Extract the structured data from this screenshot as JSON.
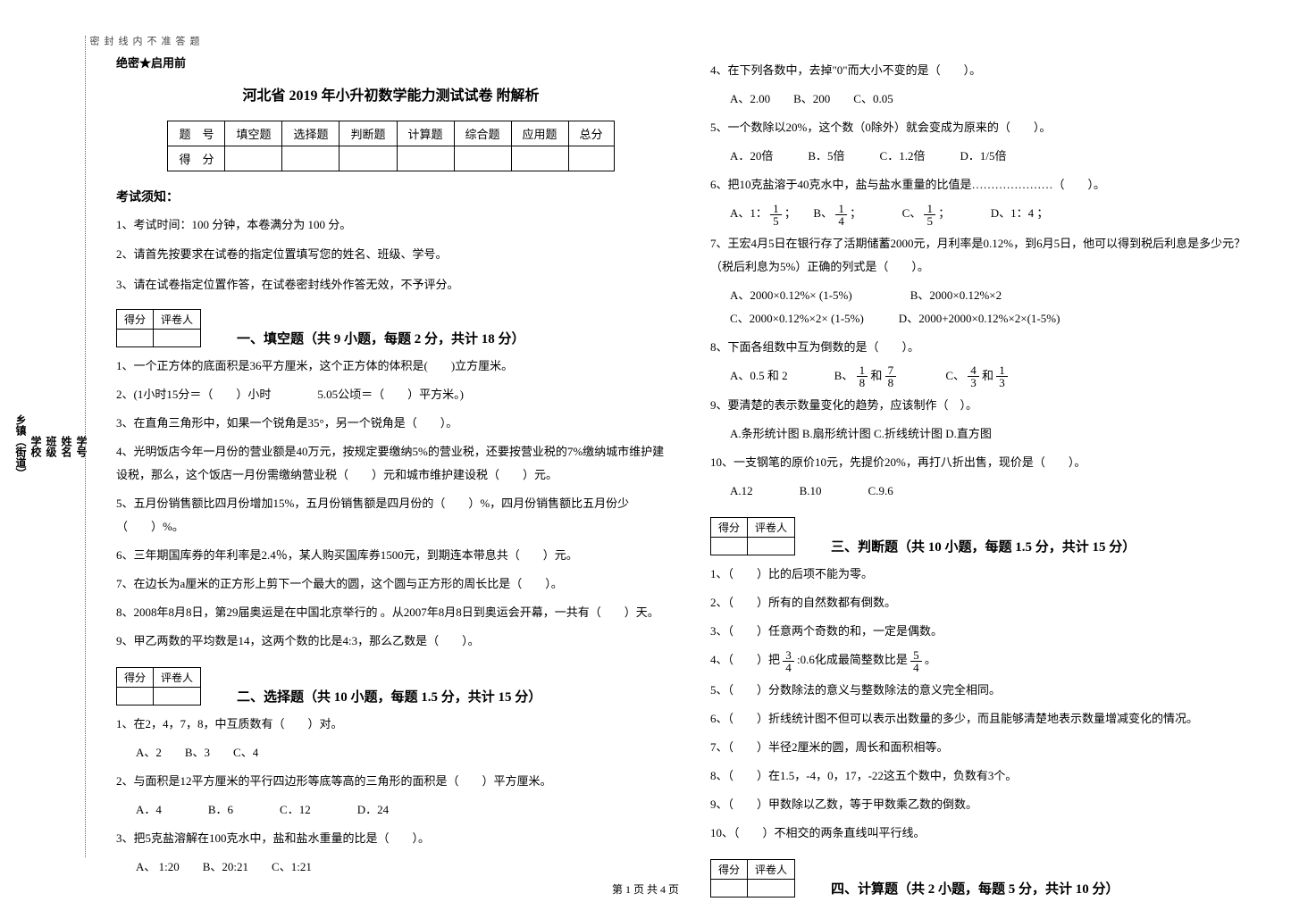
{
  "secret": "绝密★启用前",
  "title": "河北省 2019 年小升初数学能力测试试卷 附解析",
  "score_table": {
    "headers": [
      "题　号",
      "填空题",
      "选择题",
      "判断题",
      "计算题",
      "综合题",
      "应用题",
      "总分"
    ],
    "row_label": "得　分"
  },
  "notice_head": "考试须知：",
  "notices": [
    "1、考试时间：100 分钟，本卷满分为 100 分。",
    "2、请首先按要求在试卷的指定位置填写您的姓名、班级、学号。",
    "3、请在试卷指定位置作答，在试卷密封线外作答无效，不予评分。"
  ],
  "scorebox": {
    "c1": "得分",
    "c2": "评卷人"
  },
  "sec1": {
    "title": "一、填空题（共 9 小题，每题 2 分，共计 18 分）",
    "q1": "1、一个正方体的底面积是36平方厘米，这个正方体的体积是(　　)立方厘米。",
    "q2": "2、(1小时15分＝（　　）小时　　　　5.05公顷＝（　　）平方米。)",
    "q3": "3、在直角三角形中，如果一个锐角是35°，另一个锐角是（　　）。",
    "q4": "4、光明饭店今年一月份的营业额是40万元，按规定要缴纳5%的营业税，还要按营业税的7%缴纳城市维护建设税，那么，这个饭店一月份需缴纳营业税（　　）元和城市维护建设税（　　）元。",
    "q5": "5、五月份销售额比四月份增加15%，五月份销售额是四月份的（　　）%，四月份销售额比五月份少（　　）%。",
    "q6": "6、三年期国库券的年利率是2.4％，某人购买国库券1500元，到期连本带息共（　　）元。",
    "q7": "7、在边长为a厘米的正方形上剪下一个最大的圆，这个圆与正方形的周长比是（　　）。",
    "q8": "8、2008年8月8日，第29届奥运是在中国北京举行的 。从2007年8月8日到奥运会开幕，一共有（　　）天。",
    "q9": "9、甲乙两数的平均数是14，这两个数的比是4:3，那么乙数是（　　）。"
  },
  "sec2": {
    "title": "二、选择题（共 10 小题，每题 1.5 分，共计 15 分）",
    "q1": "1、在2，4，7，8，中互质数有（　　）对。",
    "q1opts": "A、2　　B、3　　C、4",
    "q2": "2、与面积是12平方厘米的平行四边形等底等高的三角形的面积是（　　）平方厘米。",
    "q2opts": "A．4　　　　B．6　　　　C．12　　　　D．24",
    "q3": "3、把5克盐溶解在100克水中，盐和盐水重量的比是（　　）。",
    "q3opts": "A、 1:20　　B、20:21　　C、1:21",
    "q4": "4、在下列各数中，去掉\"0\"而大小不变的是（　　）。",
    "q4opts": "A、2.00　　B、200　　C、0.05",
    "q5": "5、一个数除以20%，这个数（0除外）就会变成为原来的（　　）。",
    "q5opts": "A．20倍　　　B．5倍　　　C．1.2倍　　　D．1/5倍",
    "q6": "6、把10克盐溶于40克水中，盐与盐水重量的比值是…………………（　　）。",
    "q6a": "A、1：",
    "q6b": "；　　B、",
    "q6c": "；　　　　C、",
    "q6d": "；　　　　D、1：4 ；",
    "q7": "7、王宏4月5日在银行存了活期储蓄2000元，月利率是0.12%，到6月5日，他可以得到税后利息是多少元？（税后利息为5%）正确的列式是（　　）。",
    "q7a": "A、2000×0.12%× (1-5%)　　　　　B、2000×0.12%×2",
    "q7b": "C、2000×0.12%×2× (1-5%)　　　D、2000+2000×0.12%×2×(1-5%)",
    "q8": "8、下面各组数中互为倒数的是（　　）。",
    "q8a": "A、0.5 和 2　　　　B、",
    "q8b": " 和 ",
    "q8c": "　　　　C、",
    "q8d": " 和 ",
    "q9": "9、要清楚的表示数量变化的趋势，应该制作（　）。",
    "q9opts": "A.条形统计图 B.扇形统计图 C.折线统计图 D.直方图",
    "q10": "10、一支钢笔的原价10元，先提价20%，再打八折出售，现价是（　　）。",
    "q10opts": "A.12　　　　B.10　　　　C.9.6"
  },
  "sec3": {
    "title": "三、判断题（共 10 小题，每题 1.5 分，共计 15 分）",
    "q1": "1、（　　）比的后项不能为零。",
    "q2": "2、（　　）所有的自然数都有倒数。",
    "q3": "3、（　　）任意两个奇数的和，一定是偶数。",
    "q4a": "4、（　　）把",
    "q4b": ":0.6化成最简整数比是",
    "q4c": "。",
    "q5": "5、（　　）分数除法的意义与整数除法的意义完全相同。",
    "q6": "6、（　　）折线统计图不但可以表示出数量的多少，而且能够清楚地表示数量增减变化的情况。",
    "q7": "7、（　　）半径2厘米的圆，周长和面积相等。",
    "q8": "8、（　　）在1.5，-4，0，17，-22这五个数中，负数有3个。",
    "q9": "9、（　　）甲数除以乙数，等于甲数乘乙数的倒数。",
    "q10": "10、（　　）不相交的两条直线叫平行线。"
  },
  "sec4": {
    "title": "四、计算题（共 2 小题，每题 5 分，共计 10 分）"
  },
  "binding": {
    "f1": "乡镇（街道）",
    "f2": "学校",
    "f3": "班级",
    "f4": "姓名",
    "f5": "学号",
    "d1": "密",
    "d2": "封",
    "d3": "线",
    "d4": "内",
    "d5": "不",
    "d6": "准",
    "d7": "答",
    "d8": "题"
  },
  "footer": "第 1 页 共 4 页",
  "fracs": {
    "f15n": "1",
    "f15d": "5",
    "f14n": "1",
    "f14d": "4",
    "f18n": "1",
    "f18d": "8",
    "f78n": "7",
    "f78d": "8",
    "f43n": "4",
    "f43d": "3",
    "f13n": "1",
    "f13d": "3",
    "f34n": "3",
    "f34d": "4",
    "f54n": "5",
    "f54d": "4"
  }
}
